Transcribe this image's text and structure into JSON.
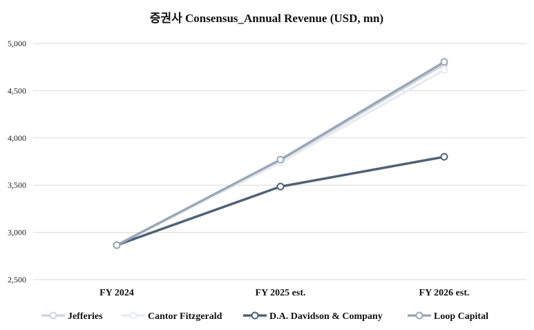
{
  "chart_data": {
    "type": "line",
    "title": "증권사 Consensus_Annual Revenue (USD, mn)",
    "xlabel": "",
    "ylabel": "",
    "categories": [
      "FY 2024",
      "FY 2025 est.",
      "FY 2026 est."
    ],
    "ylim": [
      2500,
      5000
    ],
    "yticks": [
      2500,
      3000,
      3500,
      4000,
      4500,
      5000
    ],
    "ytick_labels": [
      "2,500",
      "3,000",
      "3,500",
      "4,000",
      "4,500",
      "5,000"
    ],
    "grid": true,
    "legend_position": "bottom",
    "series": [
      {
        "name": "Jefferies",
        "values": [
          2865,
          3760,
          4780
        ],
        "color": "#cdd5df"
      },
      {
        "name": "Cantor Fitzgerald",
        "values": [
          2865,
          3740,
          4720
        ],
        "color": "#e8ebef"
      },
      {
        "name": "D.A. Davidson & Company",
        "values": [
          2865,
          3485,
          3800
        ],
        "color": "#4f627a"
      },
      {
        "name": "Loop Capital",
        "values": [
          2865,
          3770,
          4805
        ],
        "color": "#9aa7b8"
      }
    ]
  }
}
